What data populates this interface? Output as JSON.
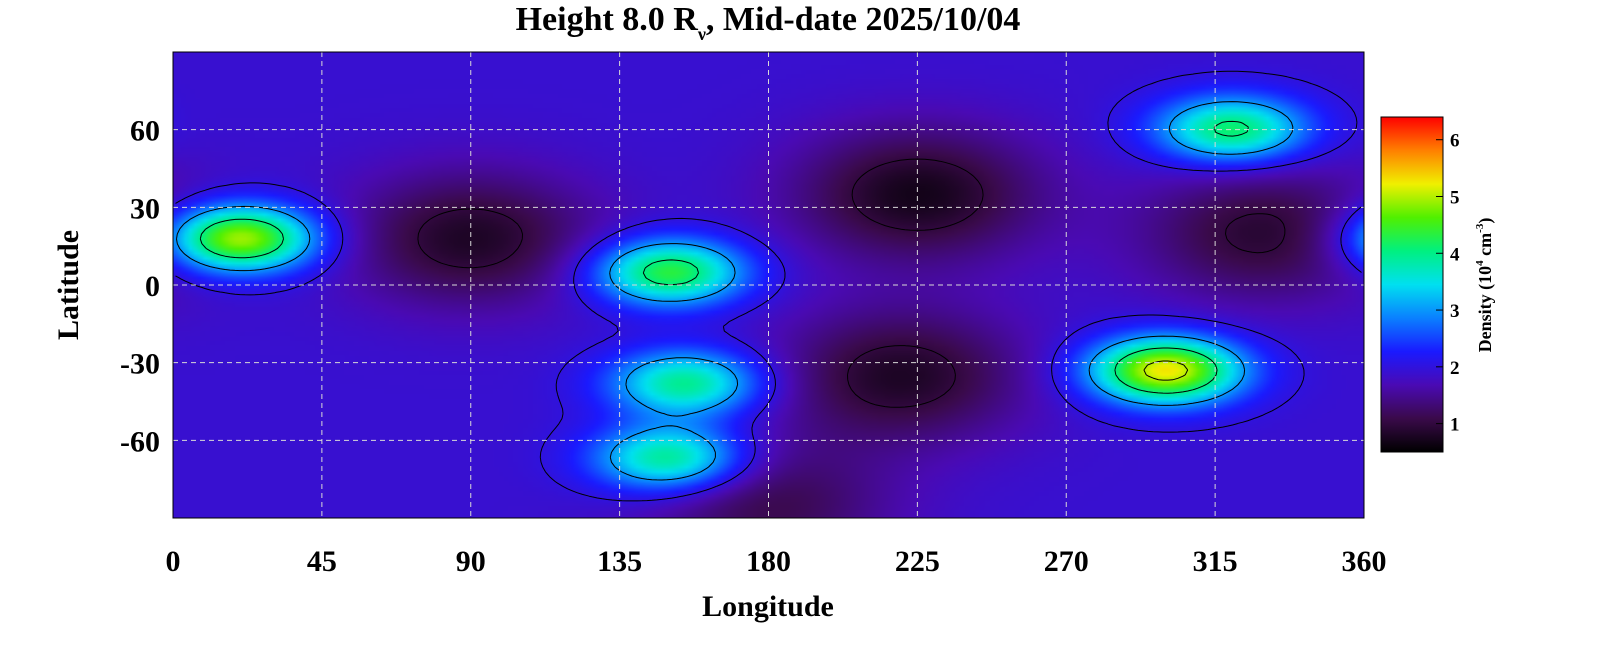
{
  "chart_data": {
    "type": "heatmap",
    "title": {
      "prefix": "Height 8.0 R",
      "subscript": "ν",
      "suffix": ", Mid-date 2025/10/04"
    },
    "xlabel": "Longitude",
    "ylabel": "Latitude",
    "xlim": [
      0,
      360
    ],
    "ylim": [
      -90,
      90
    ],
    "x_ticks": [
      "0",
      "45",
      "90",
      "135",
      "180",
      "225",
      "270",
      "315",
      "360"
    ],
    "y_ticks": [
      "60",
      "30",
      "0",
      "-30",
      "-60"
    ],
    "y_tick_values": [
      60,
      30,
      0,
      -30,
      -60
    ],
    "x_tick_values": [
      0,
      45,
      90,
      135,
      180,
      225,
      270,
      315,
      360
    ],
    "grid": true,
    "colorbar": {
      "label_prefix": "Density (10",
      "label_exp1": "4",
      "label_mid": " cm",
      "label_exp2": "-3",
      "label_suffix": ")",
      "ticks": [
        "1",
        "2",
        "3",
        "4",
        "5",
        "6"
      ],
      "tick_values": [
        1,
        2,
        3,
        4,
        5,
        6
      ],
      "range": [
        0.5,
        6.4
      ],
      "colormap": [
        "#000000",
        "#3a0a4a",
        "#4a0ab4",
        "#1a1aff",
        "#0a80ff",
        "#00e0f0",
        "#00f080",
        "#50f000",
        "#f0f000",
        "#ff8000",
        "#ff0000"
      ]
    },
    "background_level": 1.9,
    "features": [
      {
        "lon": 20,
        "lat": 18,
        "peak": 5.1,
        "kind": "high"
      },
      {
        "lon": 150,
        "lat": 5,
        "peak": 4.4,
        "kind": "high"
      },
      {
        "lon": 155,
        "lat": -38,
        "peak": 4.0,
        "kind": "high"
      },
      {
        "lon": 150,
        "lat": -67,
        "peak": 4.1,
        "kind": "high"
      },
      {
        "lon": 300,
        "lat": -33,
        "peak": 5.3,
        "kind": "high"
      },
      {
        "lon": 320,
        "lat": 60,
        "peak": 4.2,
        "kind": "high"
      },
      {
        "lon": 90,
        "lat": 18,
        "peak": 0.8,
        "kind": "low"
      },
      {
        "lon": 225,
        "lat": 35,
        "peak": 0.7,
        "kind": "low"
      },
      {
        "lon": 220,
        "lat": -35,
        "peak": 0.8,
        "kind": "low"
      },
      {
        "lon": 330,
        "lat": 20,
        "peak": 0.9,
        "kind": "low"
      },
      {
        "lon": 180,
        "lat": -85,
        "peak": 1.1,
        "kind": "low"
      }
    ]
  }
}
